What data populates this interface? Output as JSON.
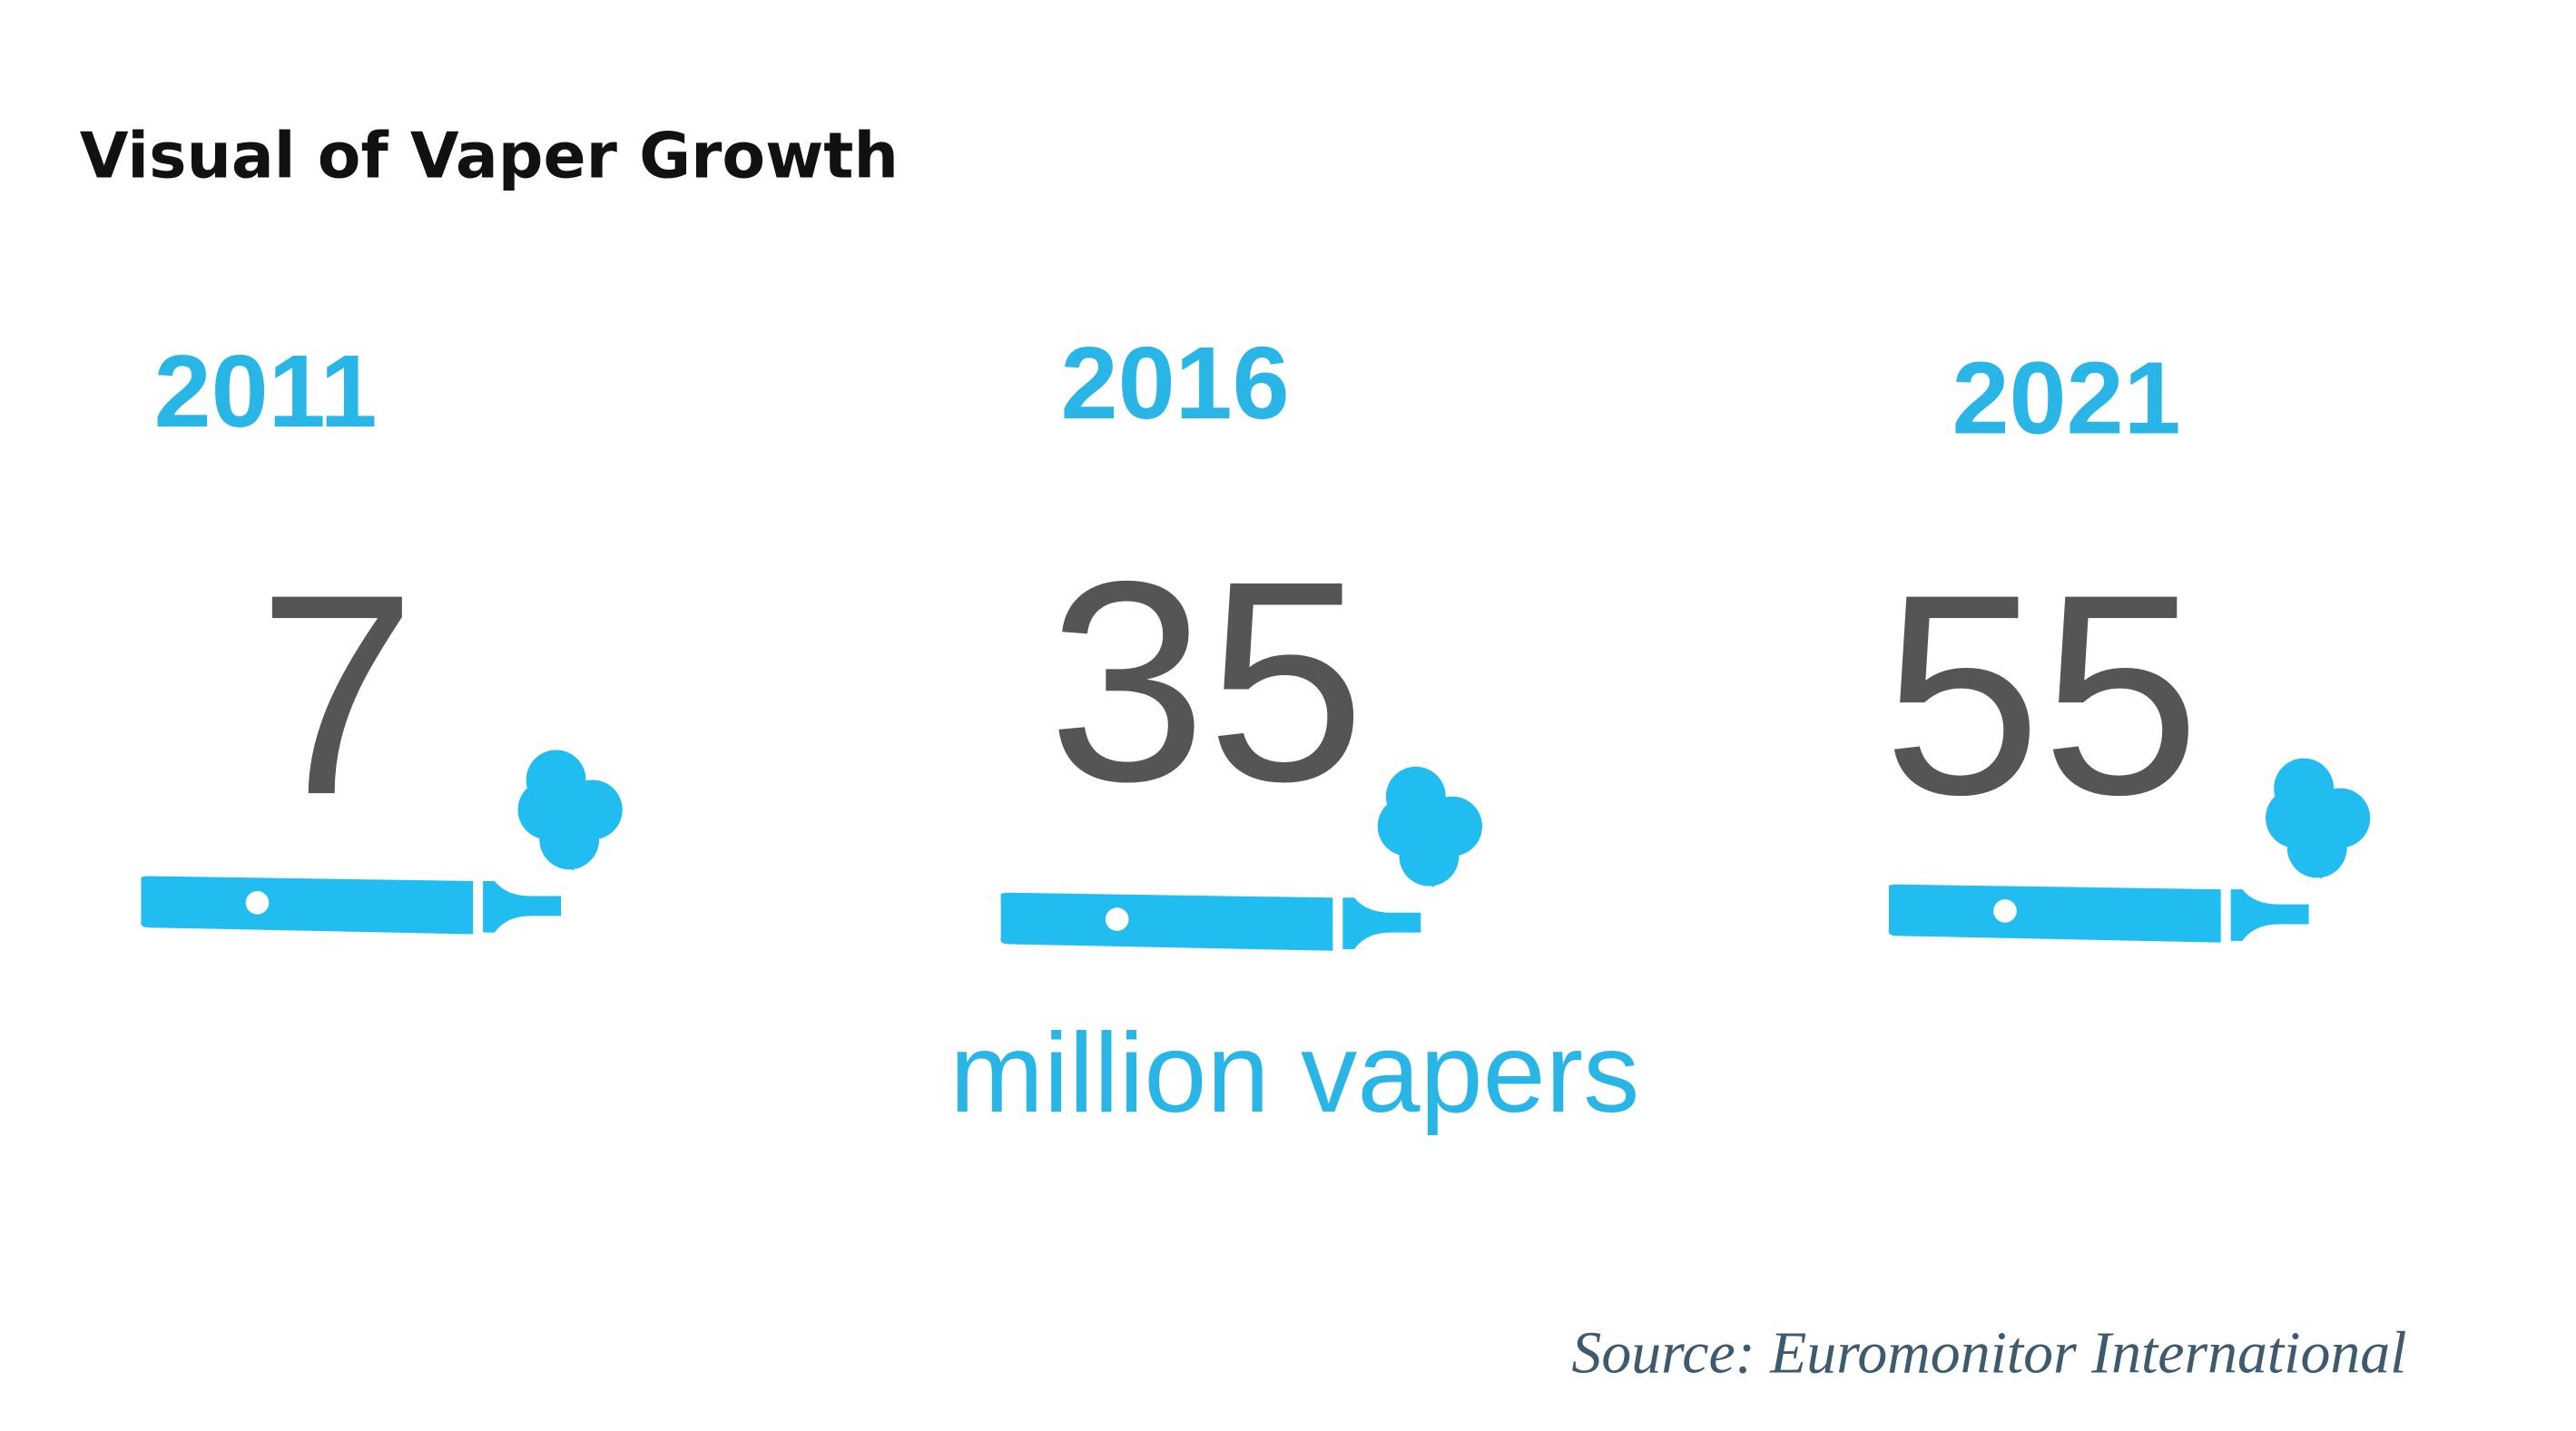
{
  "title": "Visual of Vaper Growth",
  "items": [
    {
      "year": "2011",
      "value": "7"
    },
    {
      "year": "2016",
      "value": "35"
    },
    {
      "year": "2021",
      "value": "55"
    }
  ],
  "unit_label": "million vapers",
  "source": "Source: Euromonitor International"
}
